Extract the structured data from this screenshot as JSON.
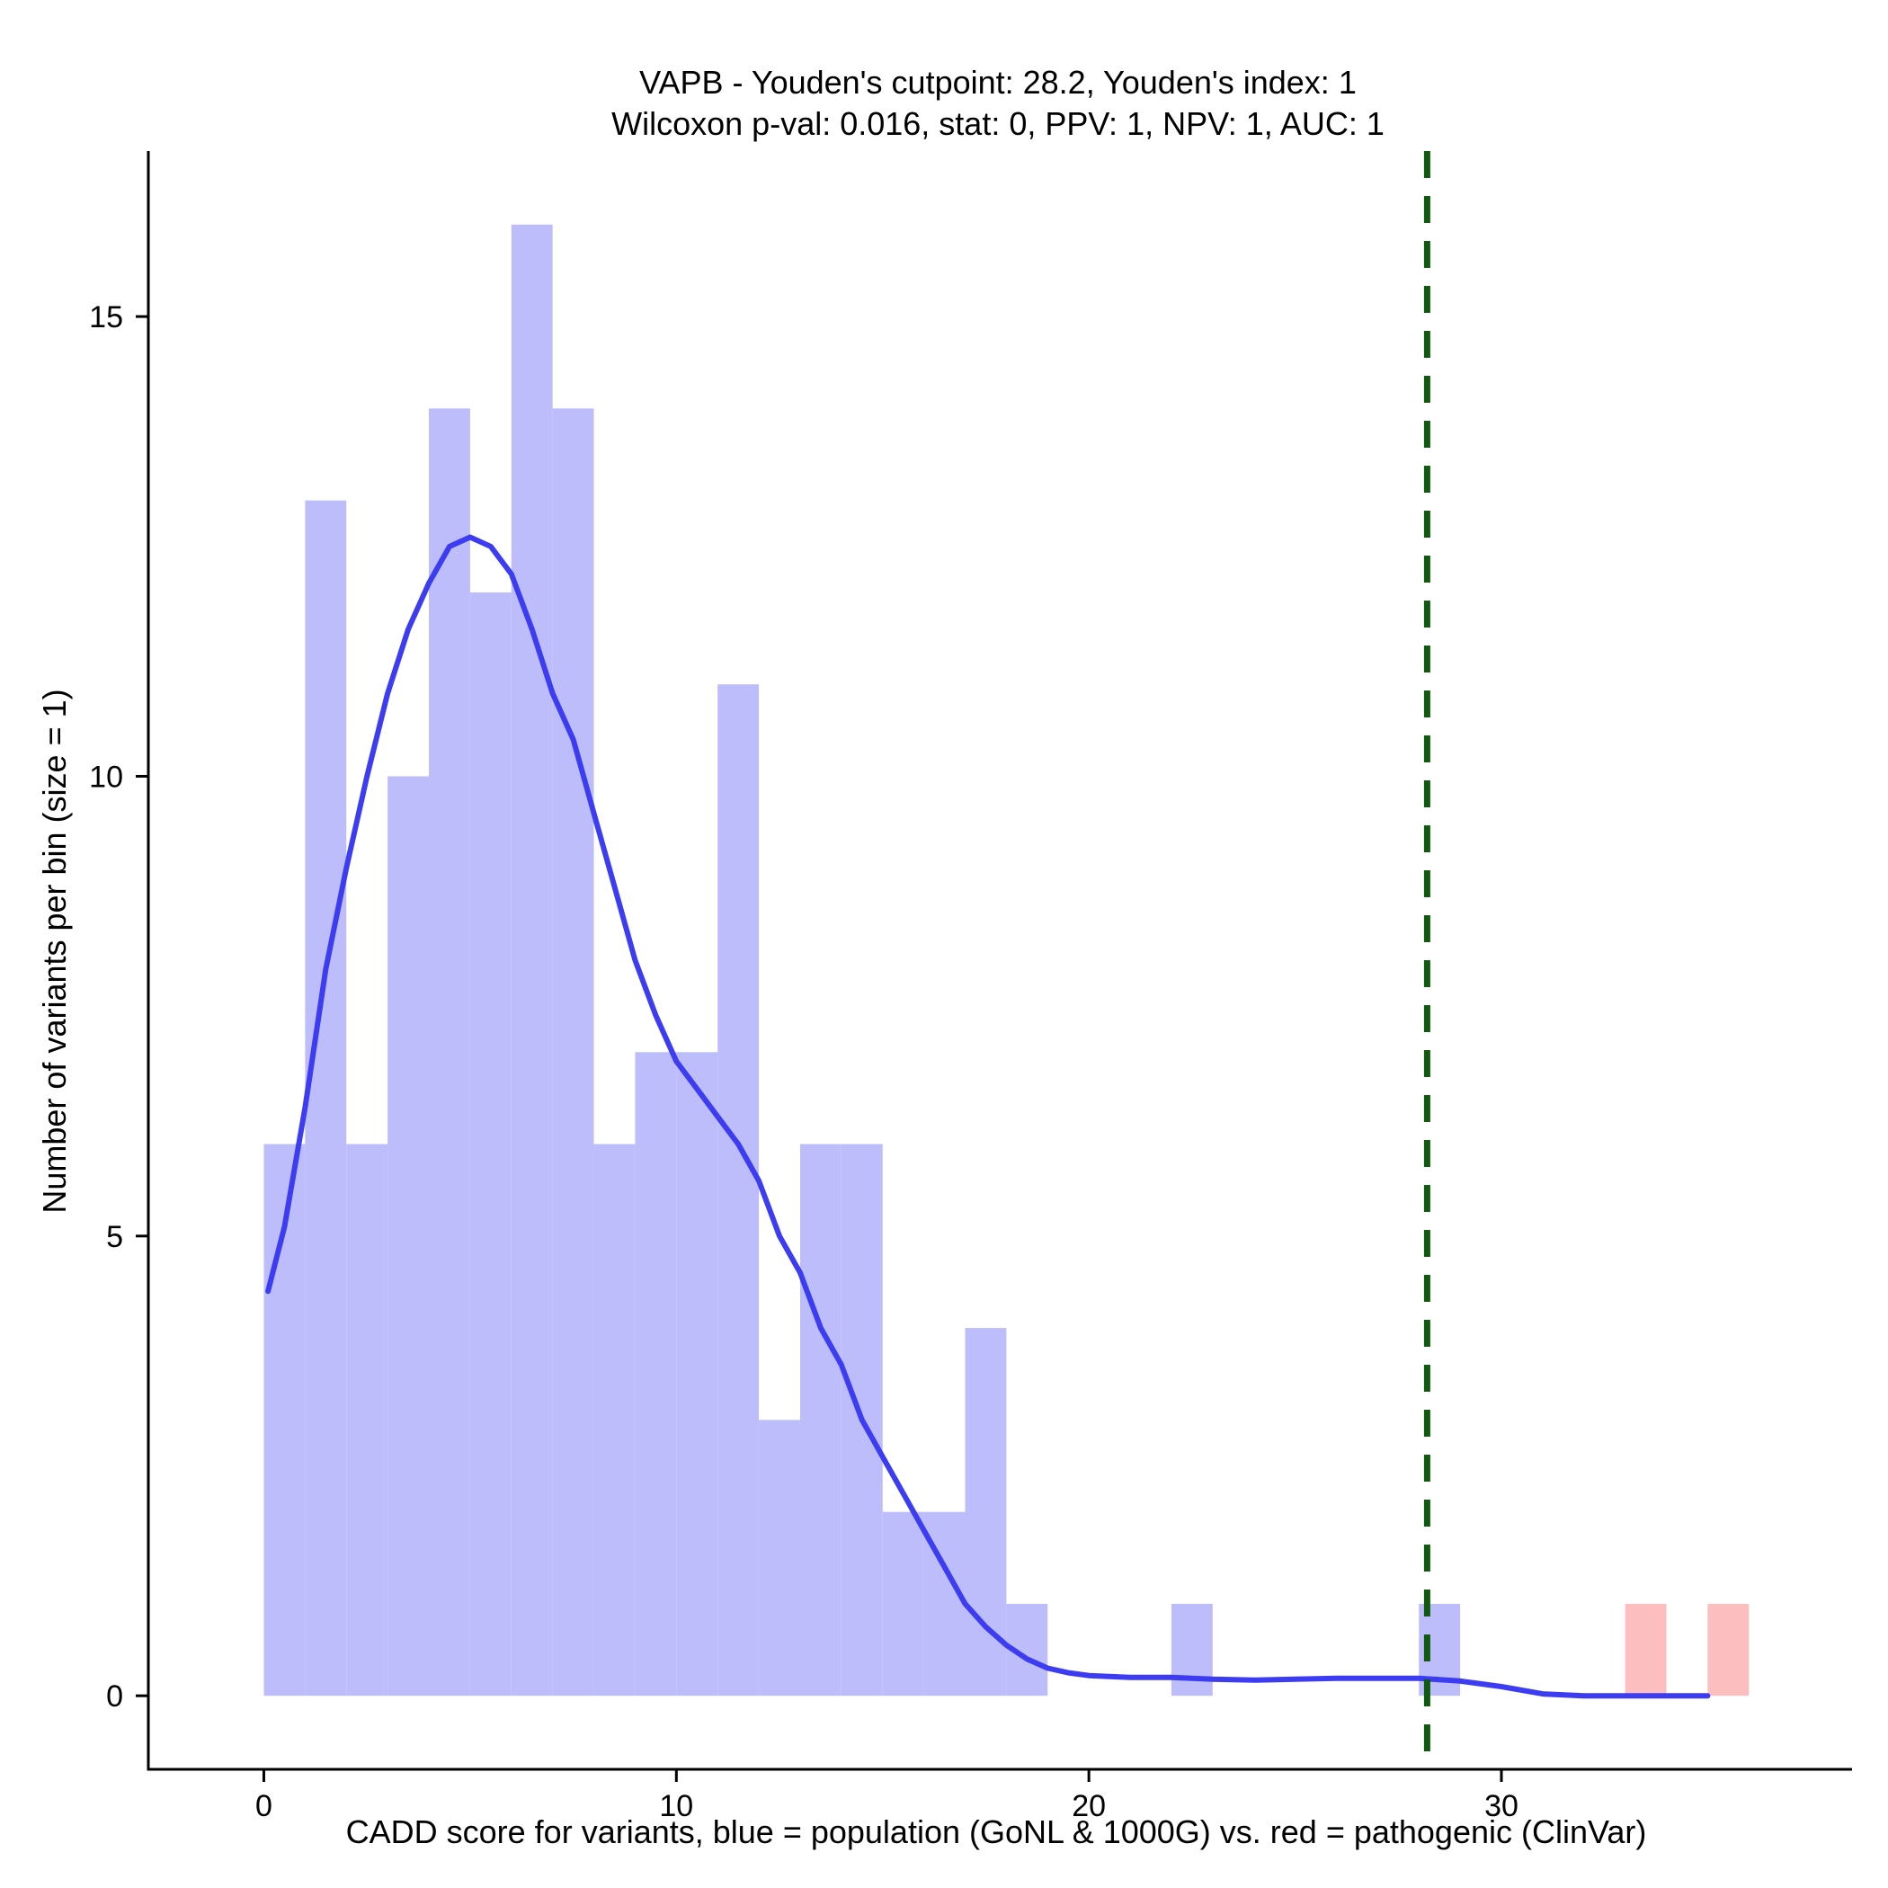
{
  "chart_data": {
    "type": "histogram",
    "title_lines": [
      "VAPB - Youden's cutpoint: 28.2, Youden's index: 1",
      "Wilcoxon p-val: 0.016, stat: 0, PPV: 1, NPV: 1, AUC: 1"
    ],
    "xlabel": "CADD score for variants, blue = population (GoNL & 1000G) vs. red = pathogenic (ClinVar)",
    "ylabel": "Number of variants per bin (size = 1)",
    "xlim": [
      -2.8,
      38.5
    ],
    "ylim": [
      -0.8,
      16.8
    ],
    "x_ticks": [
      0,
      10,
      20,
      30
    ],
    "y_ticks": [
      0,
      5,
      10,
      15
    ],
    "bin_width": 1,
    "grid": false,
    "series": [
      {
        "name": "population",
        "color": "#bdbdfb",
        "bins": [
          {
            "x0": 0,
            "count": 6
          },
          {
            "x0": 1,
            "count": 13
          },
          {
            "x0": 2,
            "count": 6
          },
          {
            "x0": 3,
            "count": 10
          },
          {
            "x0": 4,
            "count": 14
          },
          {
            "x0": 5,
            "count": 12
          },
          {
            "x0": 6,
            "count": 16
          },
          {
            "x0": 7,
            "count": 14
          },
          {
            "x0": 8,
            "count": 6
          },
          {
            "x0": 9,
            "count": 7
          },
          {
            "x0": 10,
            "count": 7
          },
          {
            "x0": 11,
            "count": 11
          },
          {
            "x0": 12,
            "count": 3
          },
          {
            "x0": 13,
            "count": 6
          },
          {
            "x0": 14,
            "count": 6
          },
          {
            "x0": 15,
            "count": 2
          },
          {
            "x0": 16,
            "count": 2
          },
          {
            "x0": 17,
            "count": 4
          },
          {
            "x0": 18,
            "count": 1
          },
          {
            "x0": 22,
            "count": 1
          },
          {
            "x0": 28,
            "count": 1
          }
        ]
      },
      {
        "name": "pathogenic",
        "color": "#fcbebe",
        "bins": [
          {
            "x0": 33,
            "count": 1
          },
          {
            "x0": 35,
            "count": 1
          }
        ]
      }
    ],
    "density": {
      "name": "population density",
      "color": "#3c3cf2",
      "points": [
        [
          0.1,
          4.4
        ],
        [
          0.5,
          5.1
        ],
        [
          1,
          6.4
        ],
        [
          1.5,
          7.9
        ],
        [
          2,
          9.0
        ],
        [
          2.5,
          10.0
        ],
        [
          3,
          10.9
        ],
        [
          3.5,
          11.6
        ],
        [
          4,
          12.1
        ],
        [
          4.5,
          12.5
        ],
        [
          5,
          12.6
        ],
        [
          5.5,
          12.5
        ],
        [
          6,
          12.2
        ],
        [
          6.5,
          11.6
        ],
        [
          7,
          10.9
        ],
        [
          7.5,
          10.4
        ],
        [
          8,
          9.6
        ],
        [
          8.5,
          8.8
        ],
        [
          9,
          8.0
        ],
        [
          9.5,
          7.4
        ],
        [
          10,
          6.9
        ],
        [
          10.5,
          6.6
        ],
        [
          11,
          6.3
        ],
        [
          11.5,
          6.0
        ],
        [
          12,
          5.6
        ],
        [
          12.5,
          5.0
        ],
        [
          13,
          4.6
        ],
        [
          13.5,
          4.0
        ],
        [
          14,
          3.6
        ],
        [
          14.5,
          3.0
        ],
        [
          15,
          2.6
        ],
        [
          15.5,
          2.2
        ],
        [
          16,
          1.8
        ],
        [
          16.5,
          1.4
        ],
        [
          17,
          1.0
        ],
        [
          17.5,
          0.75
        ],
        [
          18,
          0.55
        ],
        [
          18.5,
          0.4
        ],
        [
          19,
          0.3
        ],
        [
          19.5,
          0.25
        ],
        [
          20,
          0.22
        ],
        [
          21,
          0.2
        ],
        [
          22,
          0.2
        ],
        [
          23,
          0.18
        ],
        [
          24,
          0.17
        ],
        [
          25,
          0.18
        ],
        [
          26,
          0.19
        ],
        [
          27,
          0.19
        ],
        [
          28,
          0.19
        ],
        [
          29,
          0.16
        ],
        [
          30,
          0.1
        ],
        [
          31,
          0.02
        ],
        [
          32,
          0.0
        ],
        [
          33,
          0.0
        ],
        [
          34,
          0.0
        ],
        [
          35,
          0.0
        ]
      ]
    },
    "cutpoint": {
      "x": 28.2,
      "color": "#0f5a0f",
      "style": "dashed"
    }
  }
}
